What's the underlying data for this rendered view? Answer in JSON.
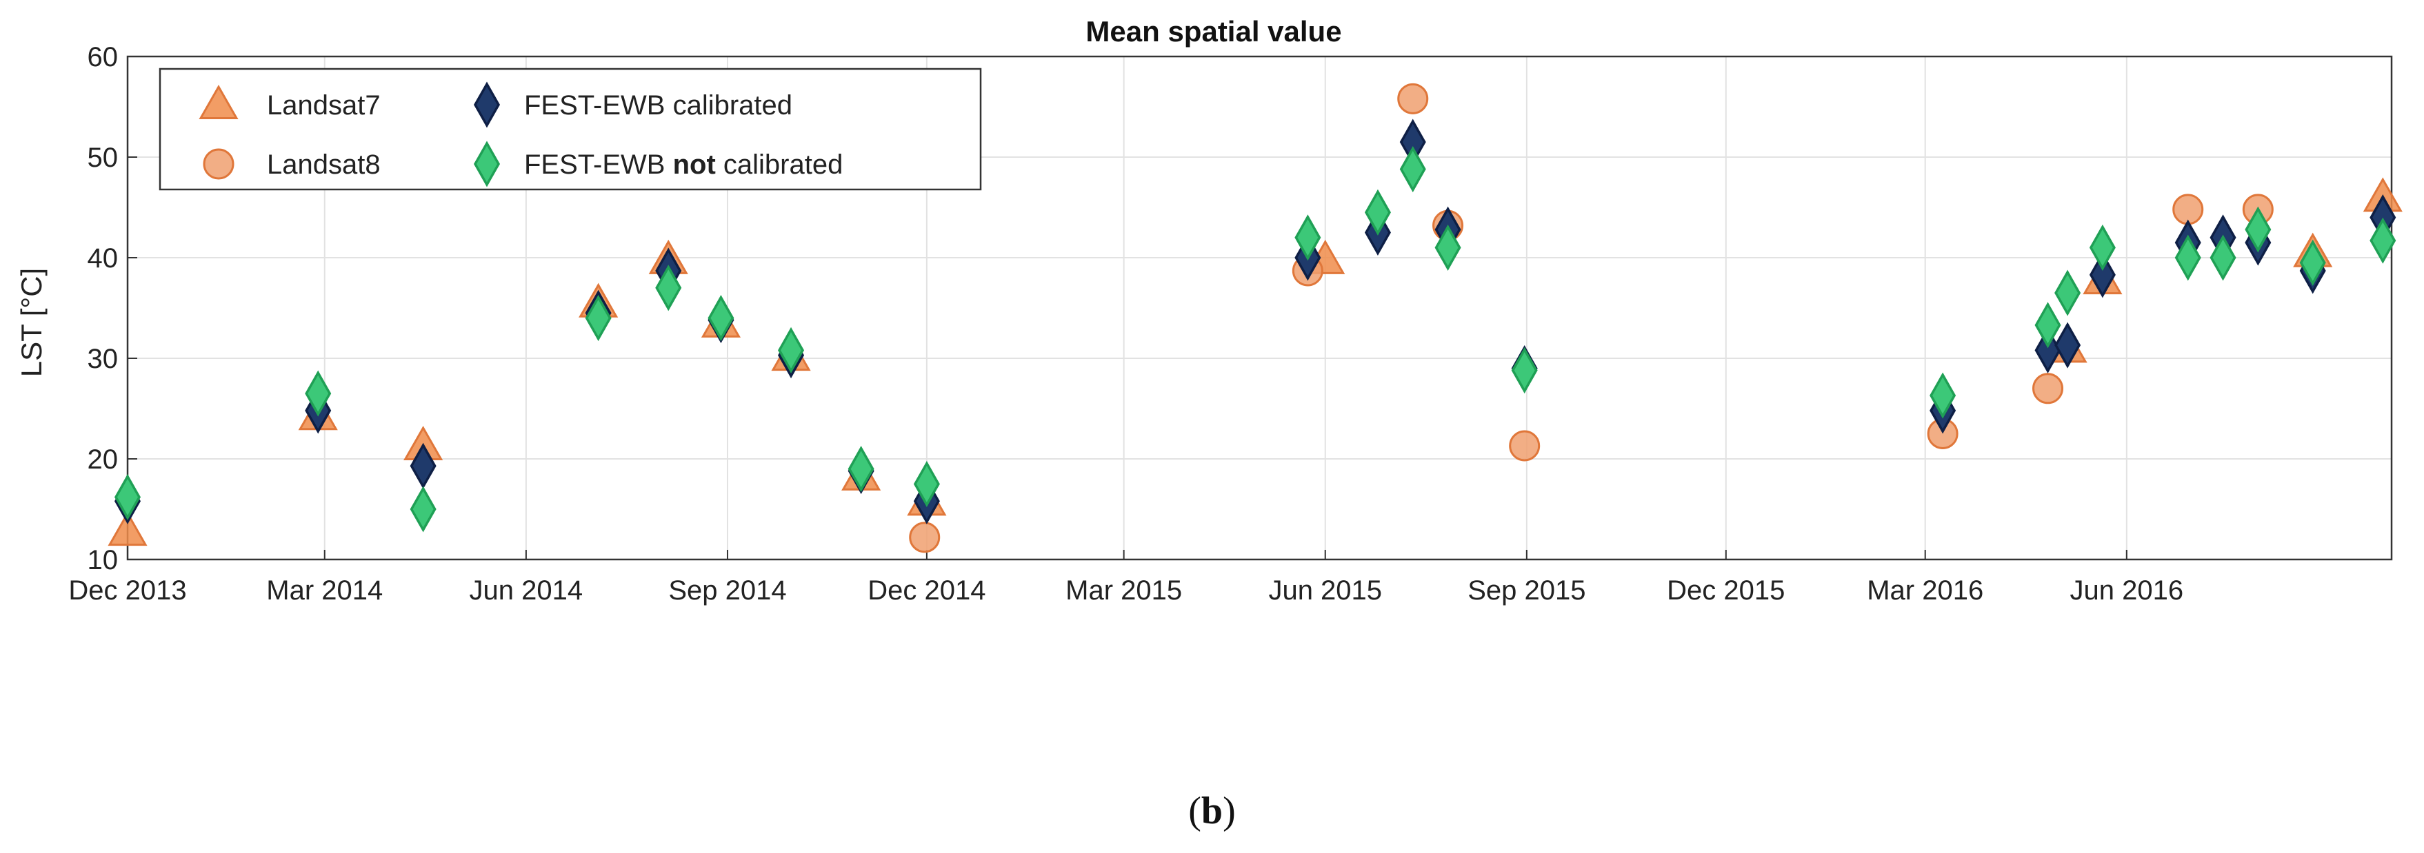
{
  "chart_data": {
    "type": "scatter",
    "title": "Mean spatial value",
    "xlabel": "",
    "ylabel": "LST [°C]",
    "ylim": [
      10,
      60
    ],
    "yticks": [
      10,
      20,
      30,
      40,
      50,
      60
    ],
    "xlim": [
      "2013-12-01",
      "2016-09-30"
    ],
    "xticks": [
      {
        "date": "2013-12-01",
        "label": "Dec 2013"
      },
      {
        "date": "2014-03-01",
        "label": "Mar 2014"
      },
      {
        "date": "2014-06-01",
        "label": "Jun 2014"
      },
      {
        "date": "2014-09-01",
        "label": "Sep 2014"
      },
      {
        "date": "2014-12-01",
        "label": "Dec 2014"
      },
      {
        "date": "2015-03-01",
        "label": "Mar 2015"
      },
      {
        "date": "2015-06-01",
        "label": "Jun 2015"
      },
      {
        "date": "2015-09-01",
        "label": "Sep 2015"
      },
      {
        "date": "2015-12-01",
        "label": "Dec 2015"
      },
      {
        "date": "2016-03-01",
        "label": "Mar 2016"
      },
      {
        "date": "2016-06-01",
        "label": "Jun 2016"
      }
    ],
    "grid": true,
    "legend_position": "top-left",
    "series": [
      {
        "name": "Landsat7",
        "marker": "triangle",
        "color": "#F08C4A",
        "edge": "#E0773A",
        "points": [
          [
            "2013-12-01",
            12.8
          ],
          [
            "2014-02-26",
            24.3
          ],
          [
            "2014-04-15",
            21.3
          ],
          [
            "2014-07-04",
            35.5
          ],
          [
            "2014-08-05",
            39.8
          ],
          [
            "2014-08-29",
            33.5
          ],
          [
            "2014-09-30",
            30.2
          ],
          [
            "2014-11-01",
            18.3
          ],
          [
            "2014-12-01",
            15.8
          ],
          [
            "2015-06-01",
            39.8
          ],
          [
            "2016-05-05",
            31.0
          ],
          [
            "2016-05-21",
            37.8
          ],
          [
            "2016-08-25",
            40.5
          ],
          [
            "2016-09-26",
            46.0
          ]
        ]
      },
      {
        "name": "Landsat8",
        "marker": "circle",
        "color": "#F0A070",
        "edge": "#E0773A",
        "points": [
          [
            "2014-11-30",
            12.2
          ],
          [
            "2015-05-24",
            38.7
          ],
          [
            "2015-07-11",
            55.8
          ],
          [
            "2015-07-27",
            43.2
          ],
          [
            "2015-08-31",
            21.3
          ],
          [
            "2016-03-09",
            22.5
          ],
          [
            "2016-04-26",
            27.0
          ],
          [
            "2016-06-29",
            44.8
          ],
          [
            "2016-07-31",
            44.8
          ]
        ]
      },
      {
        "name": "FEST-EWB calibrated",
        "marker": "diamond",
        "color": "#1F3A6B",
        "edge": "#0E1F45",
        "points": [
          [
            "2013-12-01",
            15.8
          ],
          [
            "2014-02-26",
            24.8
          ],
          [
            "2014-04-15",
            19.3
          ],
          [
            "2014-07-04",
            34.5
          ],
          [
            "2014-08-05",
            38.7
          ],
          [
            "2014-08-29",
            33.8
          ],
          [
            "2014-09-30",
            30.3
          ],
          [
            "2014-11-01",
            18.8
          ],
          [
            "2014-12-01",
            15.8
          ],
          [
            "2015-05-24",
            40.0
          ],
          [
            "2015-06-25",
            42.5
          ],
          [
            "2015-07-11",
            51.5
          ],
          [
            "2015-07-27",
            42.8
          ],
          [
            "2015-08-31",
            29.0
          ],
          [
            "2016-03-09",
            24.8
          ],
          [
            "2016-04-26",
            30.8
          ],
          [
            "2016-05-05",
            31.3
          ],
          [
            "2016-05-21",
            38.3
          ],
          [
            "2016-06-29",
            41.5
          ],
          [
            "2016-07-15",
            42.0
          ],
          [
            "2016-07-31",
            41.5
          ],
          [
            "2016-08-25",
            38.7
          ],
          [
            "2016-09-26",
            44.0
          ]
        ]
      },
      {
        "name": "FEST-EWB not calibrated",
        "marker": "diamond",
        "color": "#3CC878",
        "edge": "#1FA055",
        "points": [
          [
            "2013-12-01",
            16.2
          ],
          [
            "2014-02-26",
            26.5
          ],
          [
            "2014-04-15",
            15.0
          ],
          [
            "2014-07-04",
            34.0
          ],
          [
            "2014-08-05",
            37.0
          ],
          [
            "2014-08-29",
            34.0
          ],
          [
            "2014-09-30",
            30.8
          ],
          [
            "2014-11-01",
            19.0
          ],
          [
            "2014-12-01",
            17.5
          ],
          [
            "2015-05-24",
            42.0
          ],
          [
            "2015-06-25",
            44.5
          ],
          [
            "2015-07-11",
            48.8
          ],
          [
            "2015-07-27",
            41.0
          ],
          [
            "2015-08-31",
            28.8
          ],
          [
            "2016-03-09",
            26.3
          ],
          [
            "2016-04-26",
            33.3
          ],
          [
            "2016-05-05",
            36.5
          ],
          [
            "2016-05-21",
            41.0
          ],
          [
            "2016-06-29",
            40.0
          ],
          [
            "2016-07-15",
            40.0
          ],
          [
            "2016-07-31",
            42.8
          ],
          [
            "2016-08-25",
            39.5
          ],
          [
            "2016-09-26",
            41.7
          ]
        ]
      }
    ],
    "legend": [
      {
        "series": 0,
        "label": "Landsat7",
        "bold_word": ""
      },
      {
        "series": 1,
        "label": "Landsat8",
        "bold_word": ""
      },
      {
        "series": 2,
        "label": "FEST-EWB calibrated",
        "bold_word": ""
      },
      {
        "series": 3,
        "label_parts": [
          "FEST-EWB ",
          "not",
          " calibrated"
        ],
        "bold_word": "not"
      }
    ]
  },
  "caption": {
    "open": "(",
    "letter": "b",
    "close": ")"
  }
}
